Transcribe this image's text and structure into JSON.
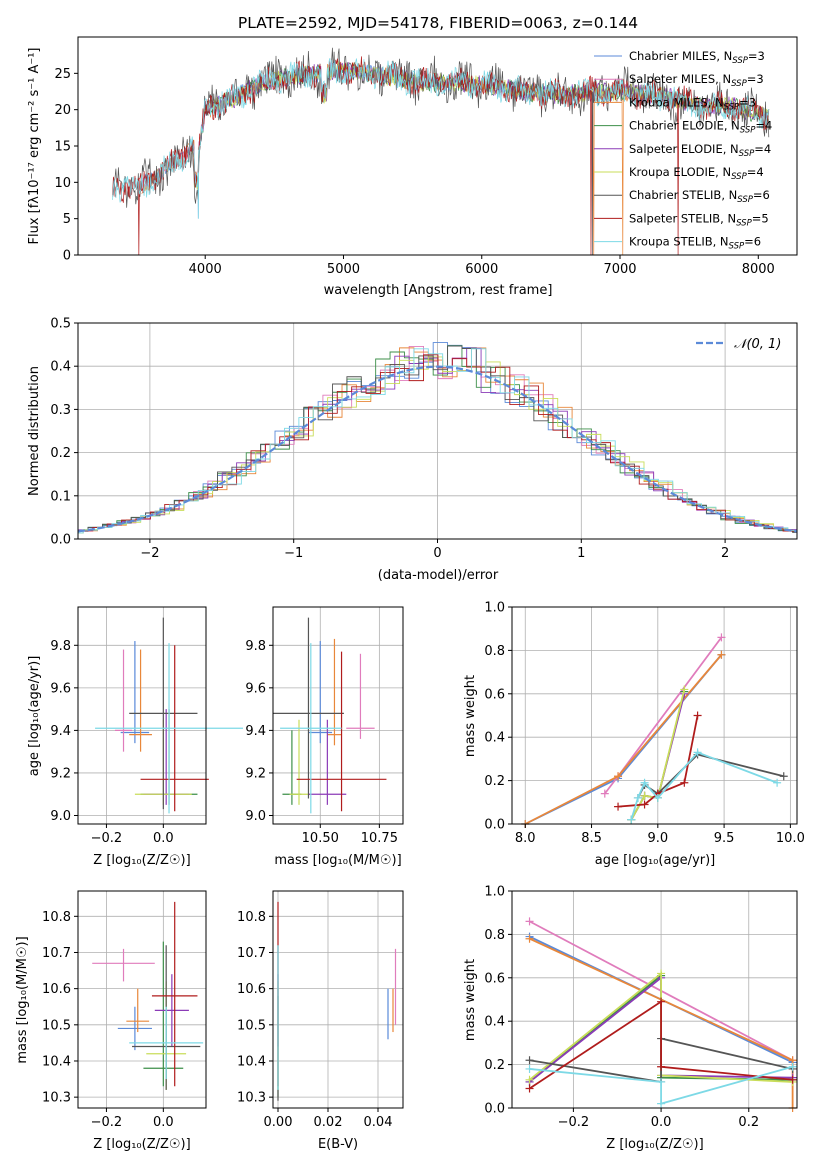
{
  "title": "PLATE=2592, MJD=54178, FIBERID=0063, z=0.144",
  "colors": {
    "Chabrier MILES": "#5b8ad8",
    "Salpeter MILES": "#e07cbc",
    "Kroupa MILES": "#e8873a",
    "Chabrier ELODIE": "#3d8f4a",
    "Salpeter ELODIE": "#8b3bb7",
    "Kroupa ELODIE": "#c9dd5a",
    "Chabrier STELIB": "#555555",
    "Salpeter STELIB": "#b01c1c",
    "Kroupa STELIB": "#7dd9e6",
    "normal": "#5b8ad8"
  },
  "chart_data": [
    {
      "type": "line",
      "id": "spectrum",
      "xlabel": "wavelength [Angstrom, rest frame]",
      "ylabel": "Flux [fλ10⁻¹⁷ erg cm⁻² s⁻¹ A⁻¹]",
      "xlim": [
        3080,
        8280
      ],
      "ylim": [
        0,
        30
      ],
      "xticks": [
        4000,
        5000,
        6000,
        7000,
        8000
      ],
      "yticks": [
        0,
        5,
        10,
        15,
        20,
        25
      ],
      "legend_position": "top-right",
      "legend": [
        {
          "name": "Chabrier MILES",
          "sub": "SSP",
          "n": "=3"
        },
        {
          "name": "Salpeter MILES",
          "sub": "SSP",
          "n": "=3"
        },
        {
          "name": "Kroupa MILES",
          "sub": "SSP",
          "n": "=3"
        },
        {
          "name": "Chabrier ELODIE",
          "sub": "SSP",
          "n": "=4"
        },
        {
          "name": "Salpeter ELODIE",
          "sub": "SSP",
          "n": "=4"
        },
        {
          "name": "Kroupa ELODIE",
          "sub": "SSP",
          "n": "=4"
        },
        {
          "name": "Chabrier STELIB",
          "sub": "SSP",
          "n": "=6"
        },
        {
          "name": "Salpeter STELIB",
          "sub": "SSP",
          "n": "=5"
        },
        {
          "name": "Kroupa STELIB",
          "sub": "SSP",
          "n": "=6"
        }
      ],
      "envelope": {
        "x": [
          3330,
          3500,
          3650,
          3800,
          3900,
          3950,
          4000,
          4200,
          4400,
          4600,
          4800,
          5000,
          5200,
          5500,
          6000,
          6300,
          6600,
          6800,
          7000,
          7200,
          7400,
          7600,
          7800,
          8000,
          8080
        ],
        "y": [
          9.5,
          9,
          11,
          13,
          15,
          14,
          20,
          21.5,
          23.5,
          24.5,
          25,
          25.5,
          25,
          24,
          23.5,
          22.5,
          22,
          22.5,
          22.5,
          22,
          21.5,
          20.5,
          20.5,
          19.5,
          19
        ]
      }
    },
    {
      "type": "histogram",
      "id": "residuals",
      "xlabel": "(data-model)/error",
      "ylabel": "Normed distribution",
      "xlim": [
        -2.5,
        2.5
      ],
      "ylim": [
        0,
        0.5
      ],
      "xticks": [
        -2,
        -1,
        0,
        1,
        2
      ],
      "yticks": [
        0.0,
        0.1,
        0.2,
        0.3,
        0.4,
        0.5
      ],
      "bin_width": 0.1,
      "legend": [
        "𝒩(0, 1)"
      ],
      "grid": true
    },
    {
      "type": "errorbar",
      "id": "Z-age",
      "xlabel": "Z [log₁₀(Z/Z☉)]",
      "ylabel": "age  [log₁₀(age/yr)]",
      "xlim": [
        -0.3,
        0.15
      ],
      "ylim": [
        8.96,
        9.98
      ],
      "xticks": [
        -0.2,
        0.0
      ],
      "yticks": [
        9.0,
        9.2,
        9.4,
        9.6,
        9.8
      ],
      "grid": true,
      "points": [
        {
          "series": "Chabrier MILES",
          "x": -0.1,
          "y": 9.39,
          "xerr": 0.05,
          "yerr": [
            0.05,
            0.43
          ]
        },
        {
          "series": "Salpeter MILES",
          "x": -0.14,
          "y": 9.4,
          "xerr": 0.03,
          "yerr": [
            0.1,
            0.38
          ]
        },
        {
          "series": "Kroupa MILES",
          "x": -0.08,
          "y": 9.38,
          "xerr": 0.04,
          "yerr": [
            0.08,
            0.4
          ]
        },
        {
          "series": "Chabrier ELODIE",
          "x": 0.02,
          "y": 9.1,
          "xerr": 0.1,
          "yerr": [
            0.05,
            0.4
          ]
        },
        {
          "series": "Salpeter ELODIE",
          "x": 0.01,
          "y": 9.1,
          "xerr": 0.08,
          "yerr": [
            0.05,
            0.4
          ]
        },
        {
          "series": "Kroupa ELODIE",
          "x": 0.0,
          "y": 9.1,
          "xerr": 0.1,
          "yerr": [
            0.05,
            0.35
          ]
        },
        {
          "series": "Chabrier STELIB",
          "x": 0.0,
          "y": 9.48,
          "xerr": 0.12,
          "yerr": [
            0.45,
            0.45
          ]
        },
        {
          "series": "Salpeter STELIB",
          "x": 0.04,
          "y": 9.17,
          "xerr": 0.12,
          "yerr": [
            0.15,
            0.63
          ]
        },
        {
          "series": "Kroupa STELIB",
          "x": 0.02,
          "y": 9.41,
          "xerr": 0.26,
          "yerr": [
            0.4,
            0.4
          ]
        }
      ]
    },
    {
      "type": "errorbar",
      "id": "mass-age",
      "xlabel": "mass [log₁₀(M/M☉)]",
      "ylabel": "",
      "xlim": [
        10.3,
        10.85
      ],
      "ylim": [
        8.96,
        9.98
      ],
      "xticks": [
        10.5,
        10.75
      ],
      "tick_labels": [
        "10.50",
        "10.75"
      ],
      "yticks": [
        9.0,
        9.2,
        9.4,
        9.6,
        9.8
      ],
      "grid": true,
      "points": [
        {
          "series": "Chabrier MILES",
          "x": 10.5,
          "y": 9.39,
          "xerr": 0.05,
          "yerr": [
            0.05,
            0.43
          ]
        },
        {
          "series": "Salpeter MILES",
          "x": 10.67,
          "y": 9.41,
          "xerr": 0.06,
          "yerr": [
            0.05,
            0.35
          ]
        },
        {
          "series": "Kroupa MILES",
          "x": 10.56,
          "y": 9.38,
          "xerr": 0.03,
          "yerr": [
            0.05,
            0.45
          ]
        },
        {
          "series": "Chabrier ELODIE",
          "x": 10.38,
          "y": 9.1,
          "xerr": 0.04,
          "yerr": [
            0.05,
            0.3
          ]
        },
        {
          "series": "Salpeter ELODIE",
          "x": 10.53,
          "y": 9.1,
          "xerr": 0.08,
          "yerr": [
            0.05,
            0.35
          ]
        },
        {
          "series": "Kroupa ELODIE",
          "x": 10.41,
          "y": 9.1,
          "xerr": 0.04,
          "yerr": [
            0.05,
            0.35
          ]
        },
        {
          "series": "Chabrier STELIB",
          "x": 10.45,
          "y": 9.48,
          "xerr": 0.15,
          "yerr": [
            0.4,
            0.45
          ]
        },
        {
          "series": "Salpeter STELIB",
          "x": 10.59,
          "y": 9.17,
          "xerr": 0.19,
          "yerr": [
            0.15,
            0.6
          ]
        },
        {
          "series": "Kroupa STELIB",
          "x": 10.46,
          "y": 9.41,
          "xerr": 0.13,
          "yerr": [
            0.4,
            0.4
          ]
        }
      ]
    },
    {
      "type": "line",
      "id": "age-weight",
      "xlabel": "age  [log₁₀(age/yr)]",
      "ylabel": "mass weight",
      "xlim": [
        7.9,
        10.05
      ],
      "ylim": [
        0,
        1
      ],
      "xticks": [
        8.0,
        8.5,
        9.0,
        9.5,
        10.0
      ],
      "yticks": [
        0.0,
        0.2,
        0.4,
        0.6,
        0.8,
        1.0
      ],
      "grid": true,
      "series": [
        {
          "name": "Chabrier MILES",
          "x": [
            8.0,
            8.7,
            9.48
          ],
          "y": [
            0.0,
            0.21,
            0.78
          ]
        },
        {
          "name": "Salpeter MILES",
          "x": [
            8.6,
            8.7,
            9.48
          ],
          "y": [
            0.14,
            0.22,
            0.86
          ]
        },
        {
          "name": "Kroupa MILES",
          "x": [
            8.0,
            8.7,
            9.48
          ],
          "y": [
            0.0,
            0.22,
            0.78
          ]
        },
        {
          "name": "Chabrier ELODIE",
          "x": [
            8.8,
            8.9,
            9.0,
            9.2
          ],
          "y": [
            0.02,
            0.13,
            0.12,
            0.61
          ]
        },
        {
          "name": "Salpeter ELODIE",
          "x": [
            8.8,
            8.9,
            9.0,
            9.2
          ],
          "y": [
            0.02,
            0.13,
            0.12,
            0.6
          ]
        },
        {
          "name": "Kroupa ELODIE",
          "x": [
            8.8,
            8.9,
            9.0,
            9.2
          ],
          "y": [
            0.02,
            0.13,
            0.12,
            0.62
          ]
        },
        {
          "name": "Chabrier STELIB",
          "x": [
            8.85,
            8.9,
            9.0,
            9.3,
            9.95
          ],
          "y": [
            0.12,
            0.18,
            0.14,
            0.32,
            0.22
          ]
        },
        {
          "name": "Salpeter STELIB",
          "x": [
            8.7,
            8.9,
            9.0,
            9.2,
            9.3
          ],
          "y": [
            0.08,
            0.09,
            0.14,
            0.19,
            0.5
          ]
        },
        {
          "name": "Kroupa STELIB",
          "x": [
            8.8,
            8.85,
            8.9,
            9.0,
            9.3,
            9.9
          ],
          "y": [
            0.02,
            0.12,
            0.19,
            0.12,
            0.33,
            0.19
          ]
        }
      ]
    },
    {
      "type": "errorbar",
      "id": "Z-mass",
      "xlabel": "Z [log₁₀(Z/Z☉)]",
      "ylabel": "mass [log₁₀(M/M☉)]",
      "xlim": [
        -0.3,
        0.15
      ],
      "ylim": [
        10.27,
        10.87
      ],
      "xticks": [
        -0.2,
        0.0
      ],
      "yticks": [
        10.3,
        10.4,
        10.5,
        10.6,
        10.7,
        10.8
      ],
      "grid": true,
      "points": [
        {
          "series": "Chabrier MILES",
          "x": -0.1,
          "y": 10.49,
          "xerr": 0.06,
          "yerr": [
            0.06,
            0.06
          ]
        },
        {
          "series": "Salpeter MILES",
          "x": -0.14,
          "y": 10.67,
          "xerr": 0.11,
          "yerr": [
            0.05,
            0.04
          ]
        },
        {
          "series": "Kroupa MILES",
          "x": -0.09,
          "y": 10.51,
          "xerr": 0.04,
          "yerr": [
            0.03,
            0.09
          ]
        },
        {
          "series": "Chabrier ELODIE",
          "x": 0.0,
          "y": 10.38,
          "xerr": 0.07,
          "yerr": [
            0.05,
            0.35
          ]
        },
        {
          "series": "Salpeter ELODIE",
          "x": 0.03,
          "y": 10.54,
          "xerr": 0.06,
          "yerr": [
            0.1,
            0.1
          ]
        },
        {
          "series": "Kroupa ELODIE",
          "x": 0.01,
          "y": 10.42,
          "xerr": 0.07,
          "yerr": [
            0.1,
            0.2
          ]
        },
        {
          "series": "Chabrier STELIB",
          "x": 0.01,
          "y": 10.44,
          "xerr": 0.12,
          "yerr": [
            0.12,
            0.28
          ]
        },
        {
          "series": "Salpeter STELIB",
          "x": 0.04,
          "y": 10.58,
          "xerr": 0.08,
          "yerr": [
            0.25,
            0.26
          ]
        },
        {
          "series": "Kroupa STELIB",
          "x": 0.01,
          "y": 10.45,
          "xerr": 0.13,
          "yerr": [
            0.1,
            0.1
          ]
        }
      ]
    },
    {
      "type": "errorbar",
      "id": "EBV-mass",
      "xlabel": "E(B-V)",
      "ylabel": "",
      "xlim": [
        -0.002,
        0.05
      ],
      "ylim": [
        10.27,
        10.87
      ],
      "xticks": [
        0.0,
        0.02,
        0.04
      ],
      "tick_labels": [
        "0.00",
        "0.02",
        "0.04"
      ],
      "yticks": [
        10.3,
        10.4,
        10.5,
        10.6,
        10.7,
        10.8
      ],
      "grid": true,
      "points": [
        {
          "series": "Chabrier MILES",
          "x": 0.044,
          "y": 10.53,
          "xerr": 0,
          "yerr": [
            0.07,
            0.07
          ]
        },
        {
          "series": "Salpeter MILES",
          "x": 0.047,
          "y": 10.6,
          "xerr": 0,
          "yerr": [
            0.1,
            0.11
          ]
        },
        {
          "series": "Kroupa MILES",
          "x": 0.046,
          "y": 10.54,
          "xerr": 0,
          "yerr": [
            0.06,
            0.06
          ]
        },
        {
          "series": "Chabrier ELODIE",
          "x": 0.0,
          "y": 10.38,
          "xerr": 0,
          "yerr": [
            0.08,
            0.2
          ]
        },
        {
          "series": "Salpeter ELODIE",
          "x": 0.0,
          "y": 10.54,
          "xerr": 0,
          "yerr": [
            0.1,
            0.1
          ]
        },
        {
          "series": "Kroupa ELODIE",
          "x": 0.0,
          "y": 10.42,
          "xerr": 0,
          "yerr": [
            0.1,
            0.2
          ]
        },
        {
          "series": "Chabrier STELIB",
          "x": 0.0,
          "y": 10.44,
          "xerr": 0,
          "yerr": [
            0.15,
            0.28
          ]
        },
        {
          "series": "Salpeter STELIB",
          "x": 0.0,
          "y": 10.58,
          "xerr": 0,
          "yerr": [
            0.25,
            0.26
          ]
        },
        {
          "series": "Kroupa STELIB",
          "x": 0.0,
          "y": 10.45,
          "xerr": 0,
          "yerr": [
            0.13,
            0.27
          ]
        }
      ]
    },
    {
      "type": "line",
      "id": "Z-weight",
      "xlabel": "Z [log₁₀(Z/Z☉)]",
      "ylabel": "mass weight",
      "xlim": [
        -0.34,
        0.31
      ],
      "ylim": [
        0,
        1
      ],
      "xticks": [
        -0.2,
        0.0,
        0.2
      ],
      "yticks": [
        0.0,
        0.2,
        0.4,
        0.6,
        0.8,
        1.0
      ],
      "grid": true,
      "series": [
        {
          "name": "Chabrier MILES",
          "x": [
            -0.3,
            0.3
          ],
          "y": [
            0.79,
            0.21
          ]
        },
        {
          "name": "Salpeter MILES",
          "x": [
            -0.3,
            0.3
          ],
          "y": [
            0.86,
            0.22
          ]
        },
        {
          "name": "Kroupa MILES",
          "x": [
            -0.3,
            0.3,
            0.3
          ],
          "y": [
            0.78,
            0.22,
            0.0
          ]
        },
        {
          "name": "Chabrier ELODIE",
          "x": [
            -0.3,
            0.0,
            0.0,
            0.3
          ],
          "y": [
            0.12,
            0.61,
            0.14,
            0.13
          ]
        },
        {
          "name": "Salpeter ELODIE",
          "x": [
            -0.3,
            0.0,
            0.0,
            0.3
          ],
          "y": [
            0.12,
            0.6,
            0.15,
            0.14
          ]
        },
        {
          "name": "Kroupa ELODIE",
          "x": [
            -0.3,
            0.0,
            0.0,
            0.3
          ],
          "y": [
            0.13,
            0.62,
            0.15,
            0.12
          ]
        },
        {
          "name": "Chabrier STELIB",
          "x": [
            -0.3,
            0.0,
            0.0,
            0.3
          ],
          "y": [
            0.22,
            0.12,
            0.32,
            0.18
          ]
        },
        {
          "name": "Salpeter STELIB",
          "x": [
            -0.3,
            0.0,
            0.0,
            0.3
          ],
          "y": [
            0.09,
            0.49,
            0.19,
            0.13
          ]
        },
        {
          "name": "Kroupa STELIB",
          "x": [
            -0.3,
            0.0,
            0.0,
            0.3
          ],
          "y": [
            0.18,
            0.12,
            0.02,
            0.19
          ]
        }
      ]
    }
  ]
}
